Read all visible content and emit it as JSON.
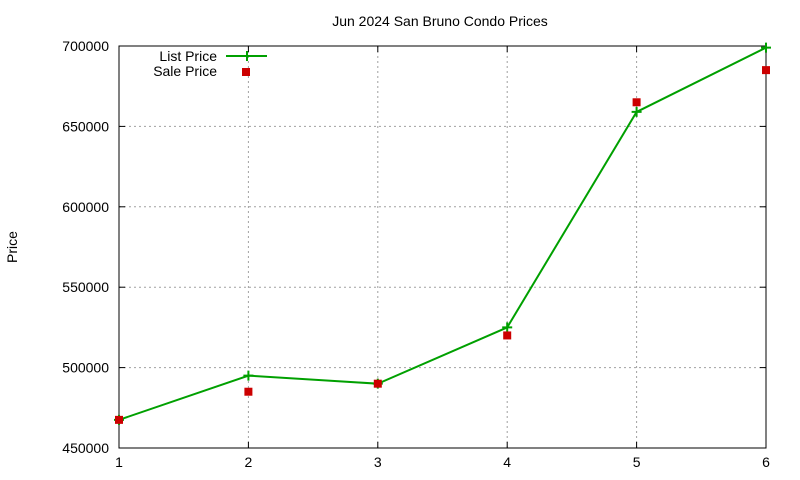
{
  "chart_data": {
    "type": "line",
    "title": "Jun 2024 San Bruno Condo Prices",
    "xlabel": "",
    "ylabel": "Price",
    "x": [
      1,
      2,
      3,
      4,
      5,
      6
    ],
    "xticks": [
      "1",
      "2",
      "3",
      "4",
      "5",
      "6"
    ],
    "yticks": [
      "450000",
      "500000",
      "550000",
      "600000",
      "650000",
      "700000"
    ],
    "xlim": [
      1,
      6
    ],
    "ylim": [
      450000,
      700000
    ],
    "grid": true,
    "legend_position": "top-left",
    "series": [
      {
        "name": "List Price",
        "style": "line+cross",
        "color": "#00a000",
        "values": [
          467500,
          495000,
          490000,
          525000,
          659000,
          699000
        ]
      },
      {
        "name": "Sale Price",
        "style": "square-points",
        "color": "#cc0000",
        "values": [
          467500,
          485000,
          490000,
          520000,
          665000,
          685000
        ]
      }
    ]
  }
}
